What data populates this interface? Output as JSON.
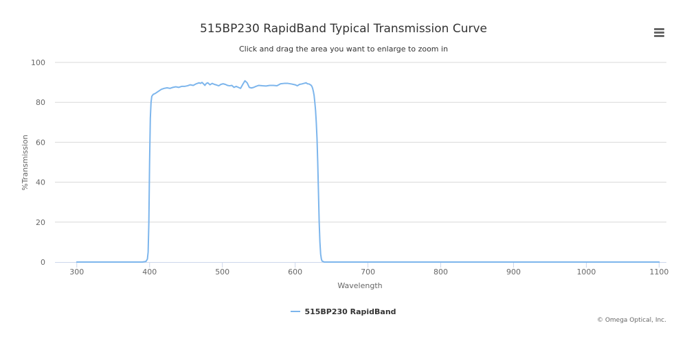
{
  "chart": {
    "title": "515BP230 RapidBand Typical Transmission Curve",
    "subtitle": "Click and drag the area you want to enlarge to zoom in",
    "menu_icon": "hamburger-menu-icon",
    "credits": "© Omega Optical, Inc.",
    "legend_label": "515BP230 RapidBand"
  },
  "colors": {
    "series": "#7cb5ec",
    "grid": "#d8d8d8",
    "axis_line": "#ccd6eb",
    "text": "#333333",
    "muted": "#666666"
  },
  "chart_data": {
    "type": "line",
    "title": "515BP230 RapidBand Typical Transmission Curve",
    "subtitle": "Click and drag the area you want to enlarge to zoom in",
    "xlabel": "Wavelength",
    "ylabel": "%Transmission",
    "xlim": [
      270,
      1110
    ],
    "ylim": [
      0,
      100
    ],
    "xticks": [
      300,
      400,
      500,
      600,
      700,
      800,
      900,
      1000,
      1100
    ],
    "yticks": [
      0,
      20,
      40,
      60,
      80,
      100
    ],
    "grid": true,
    "legend": "bottom-center",
    "series": [
      {
        "name": "515BP230 RapidBand",
        "color": "#7cb5ec",
        "x": [
          300,
          350,
          390,
          395,
          397,
          398,
          399,
          400,
          401,
          402,
          403,
          405,
          408,
          412,
          416,
          420,
          424,
          428,
          432,
          436,
          440,
          444,
          448,
          452,
          456,
          460,
          464,
          468,
          470,
          472,
          474,
          476,
          478,
          480,
          483,
          486,
          489,
          492,
          495,
          498,
          501,
          504,
          507,
          510,
          513,
          516,
          519,
          522,
          525,
          528,
          531,
          534,
          537,
          540,
          543,
          546,
          550,
          555,
          560,
          565,
          570,
          575,
          580,
          585,
          590,
          595,
          600,
          603,
          606,
          609,
          612,
          615,
          617,
          619,
          621,
          622,
          623,
          624,
          625,
          626,
          627,
          628,
          629,
          630,
          631,
          632,
          633,
          634,
          635,
          636,
          637,
          640,
          700,
          800,
          900,
          1000,
          1100
        ],
        "y": [
          0,
          0,
          0,
          0.3,
          1.5,
          5,
          20,
          50,
          72,
          80,
          83,
          84,
          84.5,
          85.5,
          86.5,
          87,
          87.3,
          87,
          87.5,
          87.8,
          87.5,
          88,
          88,
          88.3,
          88.8,
          88.5,
          89.3,
          89.8,
          89.5,
          90,
          89.3,
          88.5,
          89.5,
          89.8,
          88.8,
          89.5,
          89,
          88.7,
          88.3,
          89,
          89.3,
          89,
          88.5,
          88.3,
          88.5,
          87.5,
          88,
          87.5,
          87,
          89,
          90.8,
          89.8,
          87.5,
          87.2,
          87.5,
          88,
          88.5,
          88.3,
          88.2,
          88.5,
          88.5,
          88.3,
          89.3,
          89.5,
          89.5,
          89.2,
          88.8,
          88.3,
          89,
          89.2,
          89.5,
          89.8,
          89.3,
          89.2,
          88.8,
          88.5,
          88,
          87,
          85.5,
          83.5,
          80,
          76,
          70,
          62,
          50,
          35,
          20,
          10,
          4,
          1.5,
          0.5,
          0,
          0,
          0,
          0,
          0,
          0
        ]
      }
    ]
  }
}
